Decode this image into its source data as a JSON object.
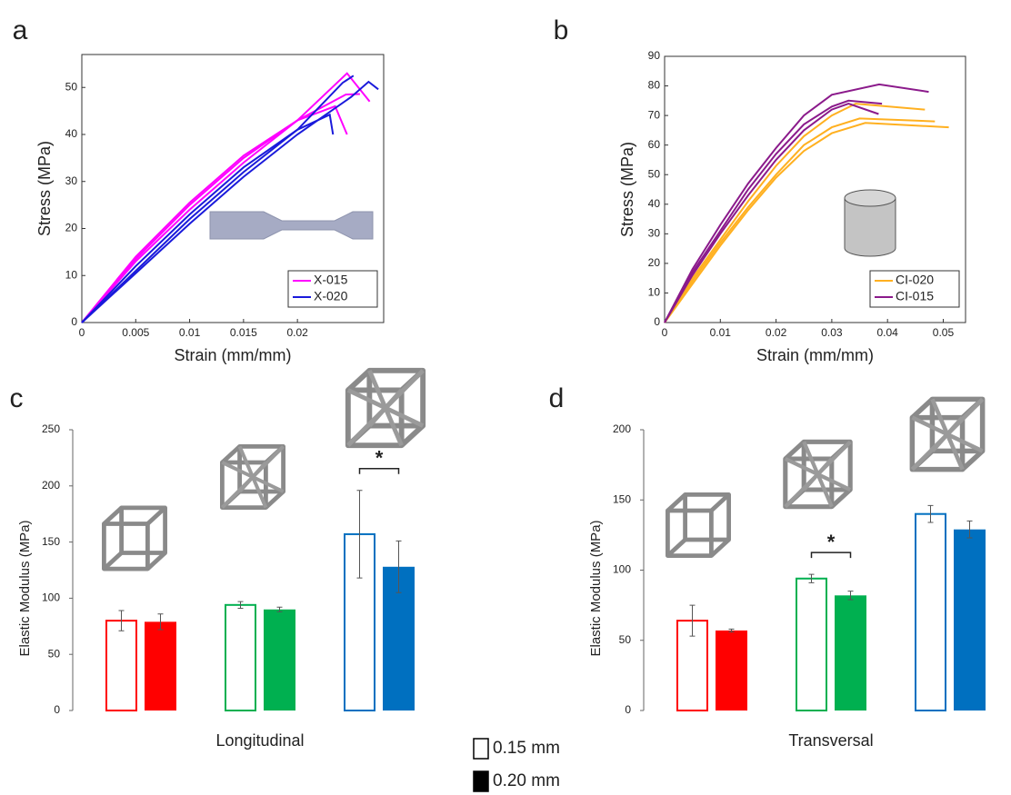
{
  "chart_data": [
    {
      "type": "line",
      "label": "a",
      "xlabel": "Strain (mm/mm)",
      "ylabel": "Stress (MPa)",
      "xlim": [
        0,
        0.028
      ],
      "ylim": [
        0,
        57
      ],
      "xticks": [
        0,
        0.005,
        0.01,
        0.015,
        0.02
      ],
      "yticks": [
        0,
        10,
        20,
        30,
        40,
        50
      ],
      "legend": "lower right",
      "series": [
        {
          "name": "X-015",
          "color": "#ff00ff",
          "curves": [
            {
              "x": [
                0,
                0.005,
                0.01,
                0.015,
                0.02,
                0.0246,
                0.0267
              ],
              "values": [
                0,
                13,
                24,
                34,
                43,
                53,
                47
              ]
            },
            {
              "x": [
                0,
                0.005,
                0.01,
                0.015,
                0.02,
                0.0245,
                0.0258
              ],
              "values": [
                0,
                13.5,
                25,
                35,
                43,
                48.5,
                48.6
              ]
            },
            {
              "x": [
                0,
                0.005,
                0.01,
                0.015,
                0.02,
                0.0235,
                0.0246
              ],
              "values": [
                0,
                14,
                25.5,
                35.5,
                43,
                46,
                40
              ]
            }
          ]
        },
        {
          "name": "X-020",
          "color": "#1a1adb",
          "curves": [
            {
              "x": [
                0,
                0.005,
                0.01,
                0.015,
                0.02,
                0.0242,
                0.0252
              ],
              "values": [
                0,
                11,
                22,
                32,
                41,
                51,
                52.5
              ]
            },
            {
              "x": [
                0,
                0.005,
                0.01,
                0.015,
                0.02,
                0.025,
                0.0266,
                0.0275
              ],
              "values": [
                0,
                10.5,
                21,
                31,
                40,
                48,
                51.2,
                49.6
              ]
            },
            {
              "x": [
                0,
                0.005,
                0.01,
                0.015,
                0.02,
                0.023,
                0.0233
              ],
              "values": [
                0,
                12,
                23,
                33,
                41,
                44.2,
                40
              ]
            }
          ]
        }
      ]
    },
    {
      "type": "line",
      "label": "b",
      "xlabel": "Strain (mm/mm)",
      "ylabel": "Stress (MPa)",
      "xlim": [
        0,
        0.054
      ],
      "ylim": [
        0,
        90
      ],
      "xticks": [
        0,
        0.01,
        0.02,
        0.03,
        0.04,
        0.05
      ],
      "yticks": [
        0,
        10,
        20,
        30,
        40,
        50,
        60,
        70,
        80,
        90
      ],
      "legend": "lower right",
      "series": [
        {
          "name": "CI-020",
          "color": "#ffb020",
          "curves": [
            {
              "x": [
                0,
                0.005,
                0.01,
                0.015,
                0.02,
                0.025,
                0.03,
                0.0343,
                0.0467
              ],
              "values": [
                0,
                15,
                28,
                41,
                53,
                63,
                70,
                74,
                72
              ]
            },
            {
              "x": [
                0,
                0.005,
                0.01,
                0.015,
                0.02,
                0.025,
                0.03,
                0.035,
                0.0485
              ],
              "values": [
                0,
                14,
                27,
                39,
                50,
                60,
                66,
                69,
                68
              ]
            },
            {
              "x": [
                0,
                0.005,
                0.01,
                0.015,
                0.02,
                0.025,
                0.03,
                0.036,
                0.051
              ],
              "values": [
                0,
                13,
                26,
                38,
                49,
                58,
                64,
                67.5,
                66
              ]
            }
          ]
        },
        {
          "name": "CI-015",
          "color": "#8b1a8b",
          "curves": [
            {
              "x": [
                0,
                0.005,
                0.01,
                0.015,
                0.02,
                0.025,
                0.03,
                0.0385,
                0.0474
              ],
              "values": [
                0,
                18,
                33,
                47,
                59,
                70,
                77,
                80.5,
                78
              ]
            },
            {
              "x": [
                0,
                0.005,
                0.01,
                0.015,
                0.02,
                0.025,
                0.03,
                0.033,
                0.039
              ],
              "values": [
                0,
                17,
                31,
                45,
                57,
                67,
                73,
                75,
                74
              ]
            },
            {
              "x": [
                0,
                0.005,
                0.01,
                0.015,
                0.02,
                0.025,
                0.03,
                0.033,
                0.0384
              ],
              "values": [
                0,
                16,
                30,
                43,
                55,
                65,
                72,
                74,
                70.5
              ]
            }
          ]
        }
      ]
    },
    {
      "type": "bar",
      "label": "c",
      "xlabel": "Longitudinal",
      "ylabel": "Elastic Modulus (MPa)",
      "ylim": [
        0,
        250
      ],
      "yticks": [
        0,
        50,
        100,
        150,
        200,
        250
      ],
      "categories": [
        null,
        null,
        null
      ],
      "colors": [
        "#ff0000",
        "#00b050",
        "#0070c0"
      ],
      "series": [
        {
          "name": "0.15 mm",
          "fill": "open",
          "values": [
            80,
            94,
            157
          ],
          "errors": [
            9,
            3,
            39
          ]
        },
        {
          "name": "0.20 mm",
          "fill": "solid",
          "values": [
            79,
            90,
            128
          ],
          "errors": [
            7,
            2,
            23
          ]
        }
      ],
      "annotations": [
        {
          "text": "*",
          "category": 2
        }
      ]
    },
    {
      "type": "bar",
      "label": "d",
      "xlabel": "Transversal",
      "ylabel": "Elastic Modulus (MPa)",
      "ylim": [
        0,
        200
      ],
      "yticks": [
        0,
        50,
        100,
        150,
        200
      ],
      "categories": [
        null,
        null,
        null
      ],
      "colors": [
        "#ff0000",
        "#00b050",
        "#0070c0"
      ],
      "series": [
        {
          "fill": "open",
          "values": [
            64,
            94,
            140
          ],
          "errors": [
            11,
            3,
            6
          ]
        },
        {
          "fill": "solid",
          "values": [
            57,
            82,
            129
          ],
          "errors": [
            1,
            3,
            6
          ]
        }
      ],
      "annotations": [
        {
          "text": "*",
          "category": 1
        }
      ]
    }
  ]
}
